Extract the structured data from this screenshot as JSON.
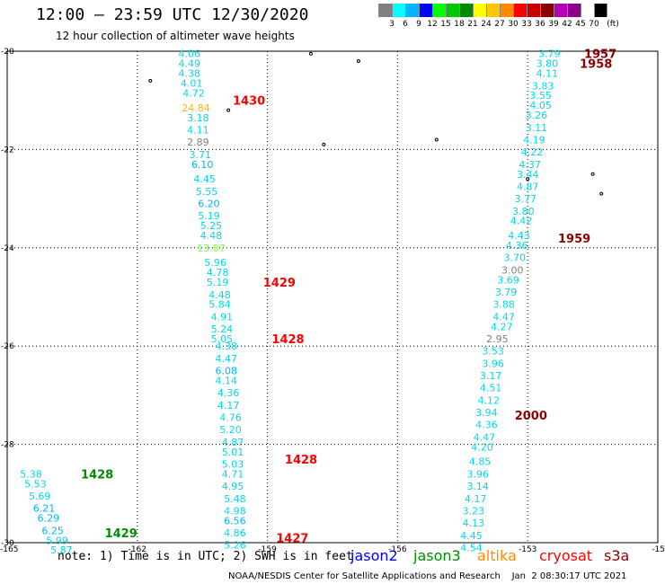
{
  "header": {
    "title": "12:00 – 23:59 UTC 12/30/2020",
    "subtitle": "12 hour collection of altimeter wave heights"
  },
  "color_legend": {
    "unit": "(ft)",
    "colors": [
      "#808080",
      "#00ffff",
      "#00b4ff",
      "#0000ff",
      "#00ff00",
      "#00c800",
      "#008c00",
      "#ffff00",
      "#ffc800",
      "#ff8c00",
      "#ff0000",
      "#c80000",
      "#8c0000",
      "#b400b4",
      "#8c008c",
      "#ffffff",
      "#000000"
    ],
    "labels": [
      "3",
      "6",
      "9",
      "12",
      "15",
      "18",
      "21",
      "24",
      "27",
      "30",
      "33",
      "36",
      "39",
      "42",
      "45",
      "70"
    ]
  },
  "footer": {
    "note": "note: 1) Time is in UTC; 2) SWH is in feet",
    "satellites": [
      {
        "name": "jason2",
        "color": "#0000ff"
      },
      {
        "name": "jason3",
        "color": "#008c00"
      },
      {
        "name": "altika",
        "color": "#ff8c00"
      },
      {
        "name": "cryosat",
        "color": "#ff0000"
      },
      {
        "name": "s3a",
        "color": "#8c0000"
      }
    ],
    "credit": "NOAA/NESDIS Center for Satellite Applications and Research    Jan  2 08:30:17 UTC 2021"
  },
  "chart_data": {
    "type": "scatter",
    "xlim": [
      -165,
      -150
    ],
    "ylim": [
      -30,
      -20
    ],
    "x_ticks": [
      "-165",
      "-162",
      "-159",
      "-156",
      "-153",
      "-15"
    ],
    "y_ticks": [
      "-20",
      "-22",
      "-24",
      "-26",
      "-28",
      "-30"
    ],
    "grid": true,
    "series": [
      {
        "satellite": "cryosat",
        "color": "#ff0000",
        "time_labels": [
          {
            "text": "1430",
            "lon": -159.8,
            "lat": -21.0
          },
          {
            "text": "1429",
            "lon": -159.1,
            "lat": -24.7
          },
          {
            "text": "1428",
            "lon": -158.9,
            "lat": -25.85
          },
          {
            "text": "1428",
            "lon": -158.6,
            "lat": -28.3
          },
          {
            "text": "1427",
            "lon": -158.8,
            "lat": -29.9
          }
        ],
        "points": [
          {
            "lon": -160.8,
            "lat": -20.05,
            "swh": "4.06",
            "color": "#00d8e8"
          },
          {
            "lon": -160.8,
            "lat": -20.25,
            "swh": "4.49",
            "color": "#00d8e8"
          },
          {
            "lon": -160.8,
            "lat": -20.45,
            "swh": "4.38",
            "color": "#00d8e8"
          },
          {
            "lon": -160.75,
            "lat": -20.65,
            "swh": "4.01",
            "color": "#00d8e8"
          },
          {
            "lon": -160.7,
            "lat": -20.85,
            "swh": "4.72",
            "color": "#00d8e8"
          },
          {
            "lon": -160.65,
            "lat": -21.15,
            "swh": "24.84",
            "color": "#ffb400"
          },
          {
            "lon": -160.6,
            "lat": -21.35,
            "swh": "3.18",
            "color": "#00d8e8"
          },
          {
            "lon": -160.6,
            "lat": -21.6,
            "swh": "4.11",
            "color": "#00d8e8"
          },
          {
            "lon": -160.6,
            "lat": -21.85,
            "swh": "2.89",
            "color": "#808080"
          },
          {
            "lon": -160.55,
            "lat": -22.1,
            "swh": "3.71",
            "color": "#00d8e8"
          },
          {
            "lon": -160.5,
            "lat": -22.3,
            "swh": "6.10",
            "color": "#00b4ff"
          },
          {
            "lon": -160.45,
            "lat": -22.6,
            "swh": "4.45",
            "color": "#00d8e8"
          },
          {
            "lon": -160.4,
            "lat": -22.85,
            "swh": "5.55",
            "color": "#00d8e8"
          },
          {
            "lon": -160.35,
            "lat": -23.1,
            "swh": "6.20",
            "color": "#00b4ff"
          },
          {
            "lon": -160.35,
            "lat": -23.35,
            "swh": "5.19",
            "color": "#00d8e8"
          },
          {
            "lon": -160.3,
            "lat": -23.55,
            "swh": "5.25",
            "color": "#00d8e8"
          },
          {
            "lon": -160.3,
            "lat": -23.75,
            "swh": "4.48",
            "color": "#00d8e8"
          },
          {
            "lon": -160.3,
            "lat": -24.0,
            "swh": "13.87",
            "color": "#80ff40"
          },
          {
            "lon": -160.2,
            "lat": -24.3,
            "swh": "5.96",
            "color": "#00d8e8"
          },
          {
            "lon": -160.15,
            "lat": -24.5,
            "swh": "4.78",
            "color": "#00d8e8"
          },
          {
            "lon": -160.15,
            "lat": -24.7,
            "swh": "5.19",
            "color": "#00d8e8"
          },
          {
            "lon": -160.1,
            "lat": -24.95,
            "swh": "4.48",
            "color": "#00d8e8"
          },
          {
            "lon": -160.1,
            "lat": -25.15,
            "swh": "5.84",
            "color": "#00d8e8"
          },
          {
            "lon": -160.05,
            "lat": -25.4,
            "swh": "4.91",
            "color": "#00d8e8"
          },
          {
            "lon": -160.05,
            "lat": -25.65,
            "swh": "5.24",
            "color": "#00d8e8"
          },
          {
            "lon": -160.05,
            "lat": -25.85,
            "swh": "5.05",
            "color": "#00d8e8"
          },
          {
            "lon": -159.95,
            "lat": -26.0,
            "swh": "4.38",
            "color": "#00d8e8"
          },
          {
            "lon": -159.95,
            "lat": -26.25,
            "swh": "4.47",
            "color": "#00d8e8"
          },
          {
            "lon": -159.95,
            "lat": -26.5,
            "swh": "6.08",
            "color": "#00b4ff"
          },
          {
            "lon": -159.95,
            "lat": -26.7,
            "swh": "4.14",
            "color": "#00d8e8"
          },
          {
            "lon": -159.9,
            "lat": -26.95,
            "swh": "4.36",
            "color": "#00d8e8"
          },
          {
            "lon": -159.9,
            "lat": -27.2,
            "swh": "4.17",
            "color": "#00d8e8"
          },
          {
            "lon": -159.85,
            "lat": -27.45,
            "swh": "4.76",
            "color": "#00d8e8"
          },
          {
            "lon": -159.85,
            "lat": -27.7,
            "swh": "5.20",
            "color": "#00d8e8"
          },
          {
            "lon": -159.8,
            "lat": -27.95,
            "swh": "4.87",
            "color": "#00d8e8"
          },
          {
            "lon": -159.8,
            "lat": -28.15,
            "swh": "5.01",
            "color": "#00d8e8"
          },
          {
            "lon": -159.8,
            "lat": -28.4,
            "swh": "5.03",
            "color": "#00d8e8"
          },
          {
            "lon": -159.8,
            "lat": -28.6,
            "swh": "4.71",
            "color": "#00d8e8"
          },
          {
            "lon": -159.8,
            "lat": -28.85,
            "swh": "4.95",
            "color": "#00d8e8"
          },
          {
            "lon": -159.75,
            "lat": -29.1,
            "swh": "5.48",
            "color": "#00d8e8"
          },
          {
            "lon": -159.75,
            "lat": -29.35,
            "swh": "4.98",
            "color": "#00d8e8"
          },
          {
            "lon": -159.75,
            "lat": -29.55,
            "swh": "6.56",
            "color": "#00b4ff"
          },
          {
            "lon": -159.75,
            "lat": -29.8,
            "swh": "4.86",
            "color": "#00d8e8"
          },
          {
            "lon": -159.75,
            "lat": -30.05,
            "swh": "5.26",
            "color": "#00d8e8"
          }
        ]
      },
      {
        "satellite": "s3a",
        "color": "#8c0000",
        "time_labels": [
          {
            "text": "1957",
            "lon": -151.7,
            "lat": -20.05
          },
          {
            "text": "1958",
            "lon": -151.8,
            "lat": -20.25
          },
          {
            "text": "1959",
            "lon": -152.3,
            "lat": -23.8
          },
          {
            "text": "2000",
            "lon": -153.3,
            "lat": -27.4
          }
        ],
        "points": [
          {
            "lon": -152.5,
            "lat": -20.05,
            "swh": "3.79",
            "color": "#00d8e8"
          },
          {
            "lon": -152.55,
            "lat": -20.25,
            "swh": "3.80",
            "color": "#00d8e8"
          },
          {
            "lon": -152.55,
            "lat": -20.45,
            "swh": "4.11",
            "color": "#00d8e8"
          },
          {
            "lon": -152.65,
            "lat": -20.7,
            "swh": "3.83",
            "color": "#00d8e8"
          },
          {
            "lon": -152.7,
            "lat": -20.9,
            "swh": "3.55",
            "color": "#00d8e8"
          },
          {
            "lon": -152.7,
            "lat": -21.1,
            "swh": "4.05",
            "color": "#00d8e8"
          },
          {
            "lon": -152.8,
            "lat": -21.3,
            "swh": "3.26",
            "color": "#00d8e8"
          },
          {
            "lon": -152.8,
            "lat": -21.55,
            "swh": "3.11",
            "color": "#00d8e8"
          },
          {
            "lon": -152.85,
            "lat": -21.8,
            "swh": "4.19",
            "color": "#00d8e8"
          },
          {
            "lon": -152.9,
            "lat": -22.05,
            "swh": "4.22",
            "color": "#00d8e8"
          },
          {
            "lon": -152.95,
            "lat": -22.3,
            "swh": "4.37",
            "color": "#00d8e8"
          },
          {
            "lon": -153.0,
            "lat": -22.5,
            "swh": "3.44",
            "color": "#00d8e8"
          },
          {
            "lon": -153.0,
            "lat": -22.75,
            "swh": "4.87",
            "color": "#00d8e8"
          },
          {
            "lon": -153.05,
            "lat": -23.0,
            "swh": "3.77",
            "color": "#00d8e8"
          },
          {
            "lon": -153.1,
            "lat": -23.25,
            "swh": "3.80",
            "color": "#00d8e8"
          },
          {
            "lon": -153.15,
            "lat": -23.45,
            "swh": "4.42",
            "color": "#00d8e8"
          },
          {
            "lon": -153.2,
            "lat": -23.75,
            "swh": "4.43",
            "color": "#00d8e8"
          },
          {
            "lon": -153.25,
            "lat": -23.95,
            "swh": "4.36",
            "color": "#00d8e8"
          },
          {
            "lon": -153.3,
            "lat": -24.2,
            "swh": "3.70",
            "color": "#00d8e8"
          },
          {
            "lon": -153.35,
            "lat": -24.45,
            "swh": "3.00",
            "color": "#808080"
          },
          {
            "lon": -153.45,
            "lat": -24.65,
            "swh": "3.69",
            "color": "#00d8e8"
          },
          {
            "lon": -153.5,
            "lat": -24.9,
            "swh": "3.79",
            "color": "#00d8e8"
          },
          {
            "lon": -153.55,
            "lat": -25.15,
            "swh": "3.88",
            "color": "#00d8e8"
          },
          {
            "lon": -153.55,
            "lat": -25.4,
            "swh": "4.47",
            "color": "#00d8e8"
          },
          {
            "lon": -153.6,
            "lat": -25.6,
            "swh": "4.27",
            "color": "#00d8e8"
          },
          {
            "lon": -153.7,
            "lat": -25.85,
            "swh": "2.95",
            "color": "#808080"
          },
          {
            "lon": -153.8,
            "lat": -26.1,
            "swh": "3.53",
            "color": "#00d8e8"
          },
          {
            "lon": -153.8,
            "lat": -26.35,
            "swh": "3.96",
            "color": "#00d8e8"
          },
          {
            "lon": -153.85,
            "lat": -26.6,
            "swh": "3.17",
            "color": "#00d8e8"
          },
          {
            "lon": -153.85,
            "lat": -26.85,
            "swh": "4.51",
            "color": "#00d8e8"
          },
          {
            "lon": -153.9,
            "lat": -27.1,
            "swh": "4.12",
            "color": "#00d8e8"
          },
          {
            "lon": -153.95,
            "lat": -27.35,
            "swh": "3.94",
            "color": "#00d8e8"
          },
          {
            "lon": -153.95,
            "lat": -27.6,
            "swh": "4.36",
            "color": "#00d8e8"
          },
          {
            "lon": -154.0,
            "lat": -27.85,
            "swh": "4.47",
            "color": "#00d8e8"
          },
          {
            "lon": -154.05,
            "lat": -28.05,
            "swh": "4.20",
            "color": "#00d8e8"
          },
          {
            "lon": -154.1,
            "lat": -28.35,
            "swh": "4.85",
            "color": "#00d8e8"
          },
          {
            "lon": -154.15,
            "lat": -28.6,
            "swh": "3.96",
            "color": "#00d8e8"
          },
          {
            "lon": -154.15,
            "lat": -28.85,
            "swh": "3.14",
            "color": "#00d8e8"
          },
          {
            "lon": -154.2,
            "lat": -29.1,
            "swh": "4.17",
            "color": "#00d8e8"
          },
          {
            "lon": -154.25,
            "lat": -29.35,
            "swh": "3.23",
            "color": "#00d8e8"
          },
          {
            "lon": -154.25,
            "lat": -29.6,
            "swh": "4.13",
            "color": "#00d8e8"
          },
          {
            "lon": -154.3,
            "lat": -29.85,
            "swh": "4.45",
            "color": "#00d8e8"
          },
          {
            "lon": -154.3,
            "lat": -30.1,
            "swh": "4.54",
            "color": "#00d8e8"
          }
        ]
      },
      {
        "satellite": "jason3",
        "color": "#008c00",
        "time_labels": [
          {
            "text": "1428",
            "lon": -163.3,
            "lat": -28.6
          },
          {
            "text": "1429",
            "lon": -162.75,
            "lat": -29.8
          }
        ],
        "points": [
          {
            "lon": -164.45,
            "lat": -28.6,
            "swh": "5.38",
            "color": "#00d8e8"
          },
          {
            "lon": -164.35,
            "lat": -28.8,
            "swh": "5.53",
            "color": "#00d8e8"
          },
          {
            "lon": -164.25,
            "lat": -29.05,
            "swh": "5.69",
            "color": "#00d8e8"
          },
          {
            "lon": -164.15,
            "lat": -29.3,
            "swh": "6.21",
            "color": "#00b4ff"
          },
          {
            "lon": -164.05,
            "lat": -29.5,
            "swh": "6.29",
            "color": "#00b4ff"
          },
          {
            "lon": -163.95,
            "lat": -29.75,
            "swh": "6.25",
            "color": "#00b4ff"
          },
          {
            "lon": -163.85,
            "lat": -29.95,
            "swh": "5.99",
            "color": "#00d8e8"
          },
          {
            "lon": -163.75,
            "lat": -30.15,
            "swh": "5.87",
            "color": "#00d8e8"
          }
        ]
      }
    ],
    "islands": [
      {
        "lon": -161.7,
        "lat": -20.6
      },
      {
        "lon": -159.9,
        "lat": -21.2
      },
      {
        "lon": -158.0,
        "lat": -20.05
      },
      {
        "lon": -157.7,
        "lat": -21.9
      },
      {
        "lon": -156.9,
        "lat": -20.2
      },
      {
        "lon": -155.1,
        "lat": -21.8
      },
      {
        "lon": -153.0,
        "lat": -22.6
      },
      {
        "lon": -151.5,
        "lat": -22.5
      },
      {
        "lon": -151.3,
        "lat": -22.9
      }
    ]
  }
}
